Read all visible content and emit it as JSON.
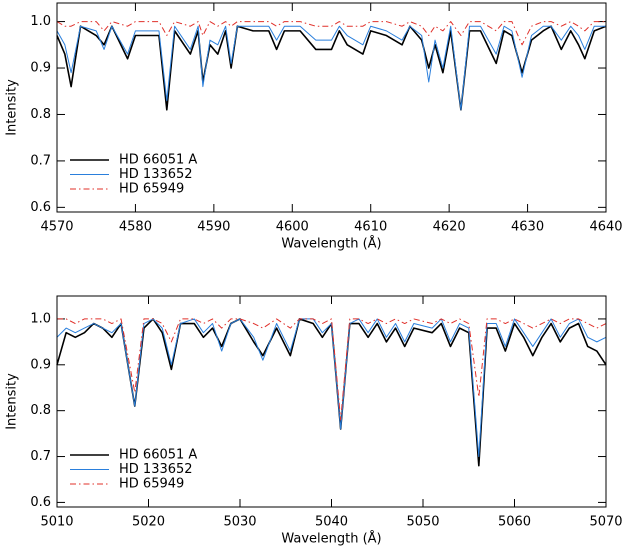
{
  "chart_data": [
    {
      "type": "line",
      "xlabel": "Wavelength (Å)",
      "ylabel": "Intensity",
      "legend": "lower left",
      "xlim": [
        4570,
        4640
      ],
      "ylim": [
        0.59,
        1.04
      ],
      "xticks": [
        4570,
        4580,
        4590,
        4600,
        4610,
        4620,
        4630,
        4640
      ],
      "yticks": [
        0.6,
        0.7,
        0.8,
        0.9,
        {
          "value": 1,
          "label": "1.0"
        }
      ],
      "x": [
        4570,
        4571,
        4571.8,
        4573,
        4575,
        4576,
        4577,
        4579,
        4580,
        4582,
        4583,
        4584,
        4585,
        4587,
        4588,
        4588.6,
        4589.5,
        4590.5,
        4591.5,
        4592.2,
        4593,
        4595,
        4597,
        4598,
        4599,
        4601,
        4603,
        4605,
        4606,
        4607,
        4609,
        4610,
        4612,
        4614,
        4615,
        4616.5,
        4617.4,
        4618.2,
        4619.2,
        4620.2,
        4621.5,
        4622.6,
        4624,
        4626,
        4627,
        4628,
        4629.3,
        4630.5,
        4632,
        4633,
        4634.3,
        4635.5,
        4636.5,
        4637.3,
        4638.5,
        4640
      ],
      "series": [
        {
          "name": "HD 66051 A",
          "color": "#000000",
          "linestyle": "solid",
          "values": [
            0.97,
            0.93,
            0.86,
            0.99,
            0.97,
            0.95,
            0.99,
            0.92,
            0.97,
            0.97,
            0.97,
            0.81,
            0.98,
            0.93,
            0.98,
            0.87,
            0.95,
            0.93,
            0.98,
            0.9,
            0.99,
            0.98,
            0.98,
            0.94,
            0.98,
            0.98,
            0.94,
            0.94,
            0.98,
            0.95,
            0.93,
            0.98,
            0.97,
            0.95,
            0.99,
            0.96,
            0.9,
            0.95,
            0.89,
            0.98,
            0.81,
            0.98,
            0.98,
            0.91,
            0.98,
            0.97,
            0.89,
            0.96,
            0.98,
            0.99,
            0.94,
            0.98,
            0.95,
            0.92,
            0.98,
            0.99
          ]
        },
        {
          "name": "HD 133652",
          "color": "#2a7fdc",
          "linestyle": "solid",
          "values": [
            0.98,
            0.95,
            0.89,
            0.99,
            0.98,
            0.94,
            0.99,
            0.93,
            0.98,
            0.98,
            0.98,
            0.83,
            0.99,
            0.94,
            0.99,
            0.86,
            0.96,
            0.95,
            0.99,
            0.91,
            0.99,
            0.99,
            0.99,
            0.96,
            0.99,
            0.99,
            0.96,
            0.96,
            0.99,
            0.97,
            0.95,
            0.99,
            0.98,
            0.96,
            0.99,
            0.97,
            0.87,
            0.96,
            0.9,
            0.99,
            0.81,
            0.99,
            0.99,
            0.93,
            0.99,
            0.98,
            0.88,
            0.97,
            0.99,
            0.99,
            0.96,
            0.99,
            0.97,
            0.94,
            0.99,
            0.99
          ]
        },
        {
          "name": "HD 65949",
          "color": "#e0302a",
          "linestyle": "dashdot",
          "values": [
            1.0,
            0.99,
            0.99,
            1.0,
            1.0,
            0.98,
            1.0,
            0.99,
            1.0,
            1.0,
            1.0,
            0.97,
            1.0,
            0.99,
            1.0,
            0.97,
            1.0,
            0.99,
            1.0,
            0.99,
            1.0,
            1.0,
            1.0,
            0.99,
            1.0,
            1.0,
            0.99,
            0.99,
            1.0,
            0.99,
            0.99,
            1.0,
            1.0,
            0.99,
            1.0,
            0.99,
            0.97,
            0.99,
            0.98,
            1.0,
            0.97,
            1.0,
            1.0,
            0.98,
            1.0,
            1.0,
            0.95,
            0.99,
            1.0,
            1.0,
            0.99,
            1.0,
            0.99,
            0.98,
            1.0,
            1.0
          ]
        }
      ]
    },
    {
      "type": "line",
      "xlabel": "Wavelength (Å)",
      "ylabel": "Intensity",
      "legend": "lower left",
      "xlim": [
        5010,
        5070
      ],
      "ylim": [
        0.59,
        1.05
      ],
      "xticks": [
        5010,
        5020,
        5030,
        5040,
        5050,
        5060,
        5070
      ],
      "yticks": [
        0.6,
        0.7,
        0.8,
        0.9,
        {
          "value": 1,
          "label": "1.0"
        }
      ],
      "x": [
        5010,
        5011,
        5012,
        5013,
        5014,
        5015,
        5016,
        5017,
        5018.5,
        5019.5,
        5020.5,
        5021.5,
        5022.5,
        5023.5,
        5025,
        5026,
        5027,
        5028,
        5029,
        5030,
        5031.5,
        5032.5,
        5034,
        5035.5,
        5036.5,
        5038,
        5039,
        5040,
        5041,
        5042,
        5043,
        5044,
        5045,
        5046,
        5047,
        5048,
        5049,
        5051,
        5052,
        5053,
        5054,
        5055,
        5056.1,
        5057,
        5058,
        5059,
        5060,
        5061,
        5062,
        5063,
        5064,
        5065,
        5066,
        5067,
        5068,
        5069,
        5070
      ],
      "series": [
        {
          "name": "HD 66051 A",
          "color": "#000000",
          "linestyle": "solid",
          "values": [
            0.9,
            0.97,
            0.96,
            0.97,
            0.99,
            0.98,
            0.96,
            0.99,
            0.81,
            0.98,
            1.0,
            0.97,
            0.89,
            0.99,
            0.99,
            0.96,
            0.98,
            0.94,
            0.99,
            1.0,
            0.95,
            0.92,
            0.98,
            0.92,
            1.0,
            0.99,
            0.96,
            0.99,
            0.76,
            0.99,
            0.99,
            0.96,
            0.99,
            0.95,
            0.98,
            0.94,
            0.98,
            0.97,
            0.99,
            0.94,
            0.98,
            0.97,
            0.68,
            0.98,
            0.98,
            0.93,
            0.99,
            0.96,
            0.92,
            0.96,
            0.99,
            0.95,
            0.98,
            0.99,
            0.94,
            0.93,
            0.9
          ]
        },
        {
          "name": "HD 133652",
          "color": "#2a7fdc",
          "linestyle": "solid",
          "values": [
            0.96,
            0.98,
            0.97,
            0.98,
            0.99,
            0.98,
            0.97,
            0.99,
            0.81,
            0.99,
            1.0,
            0.98,
            0.9,
            0.99,
            1.0,
            0.97,
            0.99,
            0.93,
            0.99,
            1.0,
            0.96,
            0.91,
            0.99,
            0.93,
            1.0,
            1.0,
            0.97,
            0.99,
            0.76,
            0.99,
            1.0,
            0.97,
            1.0,
            0.96,
            0.99,
            0.95,
            0.99,
            0.98,
            1.0,
            0.95,
            0.99,
            0.98,
            0.7,
            0.99,
            0.99,
            0.94,
            1.0,
            0.97,
            0.94,
            0.97,
            1.0,
            0.96,
            0.99,
            1.0,
            0.96,
            0.95,
            0.96
          ]
        },
        {
          "name": "HD 65949",
          "color": "#e0302a",
          "linestyle": "dashdot",
          "values": [
            1.0,
            1.0,
            0.99,
            1.0,
            1.0,
            1.0,
            0.99,
            1.0,
            0.84,
            1.0,
            1.0,
            0.99,
            0.95,
            1.0,
            1.0,
            0.99,
            1.0,
            0.98,
            1.0,
            1.0,
            0.99,
            0.98,
            1.0,
            0.98,
            1.0,
            1.0,
            0.99,
            1.0,
            0.78,
            1.0,
            1.0,
            0.99,
            1.0,
            0.99,
            1.0,
            0.99,
            1.0,
            0.99,
            1.0,
            0.99,
            1.0,
            0.99,
            0.83,
            1.0,
            1.0,
            0.99,
            1.0,
            0.99,
            0.98,
            0.99,
            1.0,
            0.99,
            1.0,
            1.0,
            0.99,
            0.98,
            0.99
          ]
        }
      ]
    }
  ]
}
